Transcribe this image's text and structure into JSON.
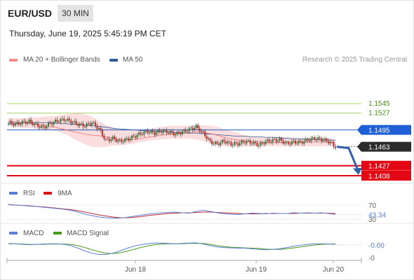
{
  "header": {
    "symbol": "EUR/USD",
    "timeframe": "30 MIN",
    "datetime": "Thursday, June 19, 2025 5:45:19 PM CET"
  },
  "legend": {
    "ma20": "MA 20 + Bollinger Bands",
    "ma50": "MA 50",
    "credit": "Research © 2025 Trading Central"
  },
  "colors": {
    "ma20": "#f06a6a",
    "ma50": "#2f5a9a",
    "bands": "#fbd7d7",
    "up": "#2e7d32",
    "down": "#c62828",
    "resistance": "#8dc63f",
    "support": "#e30613",
    "pivot": "#1f5fbf"
  },
  "chart_data": [
    {
      "type": "candlestick",
      "ylim": [
        1.4,
        1.5604
      ],
      "levels": [
        {
          "value": 1.1545,
          "label": "1.1545",
          "kind": "resistance"
        },
        {
          "value": 1.1527,
          "label": "1.1527",
          "kind": "resistance"
        },
        {
          "value": 1.1495,
          "label": "1.1495",
          "kind": "pivot"
        },
        {
          "value": 1.1463,
          "label": "1.1463",
          "kind": "last"
        },
        {
          "value": 1.1427,
          "label": "1.1427",
          "kind": "support"
        },
        {
          "value": 1.1408,
          "label": "1.1408",
          "kind": "support"
        }
      ],
      "close_path": [
        1.1508,
        1.1506,
        1.1509,
        1.1511,
        1.1504,
        1.1499,
        1.1507,
        1.1512,
        1.1515,
        1.1511,
        1.1506,
        1.1503,
        1.1509,
        1.1497,
        1.1475,
        1.1479,
        1.1473,
        1.1477,
        1.1482,
        1.1488,
        1.1492,
        1.1489,
        1.1493,
        1.1491,
        1.1487,
        1.1491,
        1.1496,
        1.1501,
        1.1489,
        1.1472,
        1.1468,
        1.1474,
        1.1468,
        1.1469,
        1.1473,
        1.1471,
        1.1466,
        1.1473,
        1.1475,
        1.1476,
        1.1469,
        1.1472,
        1.1471,
        1.1476,
        1.1479,
        1.1477,
        1.1473,
        1.1463
      ],
      "ma20": [
        1.1512,
        1.151,
        1.1509,
        1.1508,
        1.1506,
        1.1504,
        1.1502,
        1.1499,
        1.1496,
        1.1493,
        1.149,
        1.1487,
        1.1485,
        1.1484,
        1.1482,
        1.148,
        1.1477,
        1.1476,
        1.1477,
        1.1479,
        1.1481,
        1.1483,
        1.1485,
        1.1487,
        1.1488,
        1.1489,
        1.149,
        1.1491,
        1.149,
        1.1488,
        1.1485,
        1.1481,
        1.1478,
        1.1476,
        1.1474,
        1.1473,
        1.1472,
        1.1471,
        1.1471,
        1.1471,
        1.1471,
        1.1472,
        1.1472,
        1.1472,
        1.1472,
        1.1472,
        1.1472,
        1.1471
      ],
      "ma50": [
        1.1506,
        1.1507,
        1.1508,
        1.1509,
        1.1509,
        1.1509,
        1.1509,
        1.1508,
        1.1507,
        1.1506,
        1.1505,
        1.1504,
        1.1503,
        1.1502,
        1.15,
        1.1498,
        1.1497,
        1.1496,
        1.1495,
        1.1494,
        1.1493,
        1.1492,
        1.1492,
        1.1491,
        1.149,
        1.149,
        1.1489,
        1.1489,
        1.1488,
        1.1487,
        1.1486,
        1.1485,
        1.1484,
        1.1483,
        1.1483,
        1.1482,
        1.1482,
        1.1481,
        1.1481,
        1.148,
        1.1479,
        1.1478,
        1.1478,
        1.1477,
        1.1477,
        1.1476,
        1.1476,
        1.1475
      ],
      "bb_upper": [
        1.1518,
        1.1517,
        1.1517,
        1.1518,
        1.1519,
        1.152,
        1.1521,
        1.1522,
        1.1524,
        1.1526,
        1.1527,
        1.1525,
        1.152,
        1.1512,
        1.1505,
        1.15,
        1.1496,
        1.1494,
        1.1494,
        1.1495,
        1.1497,
        1.1499,
        1.1501,
        1.1502,
        1.1503,
        1.1503,
        1.1503,
        1.1504,
        1.1504,
        1.1503,
        1.1501,
        1.1497,
        1.1493,
        1.1489,
        1.1485,
        1.1482,
        1.1481,
        1.1481,
        1.1482,
        1.1482,
        1.1481,
        1.1481,
        1.148,
        1.148,
        1.148,
        1.148,
        1.148,
        1.1479
      ],
      "bb_lower": [
        1.1502,
        1.15,
        1.1499,
        1.1498,
        1.1497,
        1.1496,
        1.1495,
        1.1493,
        1.1488,
        1.1481,
        1.1474,
        1.1468,
        1.1463,
        1.1462,
        1.1463,
        1.1465,
        1.1466,
        1.1467,
        1.1469,
        1.1472,
        1.1474,
        1.1476,
        1.1477,
        1.1478,
        1.1478,
        1.1478,
        1.1478,
        1.1477,
        1.1474,
        1.147,
        1.1466,
        1.1464,
        1.1463,
        1.1463,
        1.1463,
        1.1464,
        1.1464,
        1.1464,
        1.1464,
        1.1464,
        1.1464,
        1.1464,
        1.1464,
        1.1464,
        1.1464,
        1.1464,
        1.1464,
        1.1464
      ],
      "projection": [
        1.1463,
        1.1427
      ]
    },
    {
      "type": "line",
      "title": "RSI",
      "ylim": [
        25,
        80
      ],
      "levels": [
        {
          "value": 70,
          "label": "70"
        },
        {
          "value": 30,
          "label": "30"
        }
      ],
      "last_label": "43.34",
      "series": [
        {
          "name": "RSI",
          "values": [
            72,
            70,
            69,
            67,
            66,
            64,
            62,
            60,
            58,
            55,
            50,
            44,
            40,
            36,
            34,
            33,
            33,
            35,
            38,
            41,
            44,
            46,
            48,
            49,
            50,
            48,
            47,
            52,
            55,
            52,
            48,
            45,
            44,
            43,
            45,
            47,
            46,
            45,
            47,
            46,
            46,
            48,
            47,
            48,
            47,
            48,
            46,
            43.34
          ]
        },
        {
          "name": "9MA",
          "values": [
            71,
            70,
            69,
            68,
            66,
            65,
            63,
            61,
            59,
            57,
            54,
            50,
            46,
            42,
            39,
            36,
            34,
            34,
            35,
            37,
            40,
            42,
            44,
            46,
            47,
            48,
            48,
            49,
            50,
            50,
            49,
            48,
            47,
            46,
            45,
            45,
            45,
            46,
            46,
            46,
            46,
            46,
            47,
            47,
            47,
            47,
            47,
            46
          ]
        }
      ]
    },
    {
      "type": "line",
      "title": "MACD",
      "ylim": [
        -0.0055,
        0.0035
      ],
      "ticks": [
        {
          "value": 0,
          "label": "-0.00"
        },
        {
          "value": -0.004,
          "label": "-0"
        }
      ],
      "x_labels": [
        "Jun 18",
        "Jun 19",
        "Jun 20"
      ],
      "series": [
        {
          "name": "MACD",
          "values": [
            0.0005,
            0.0004,
            0.0002,
            0.0001,
            0.0002,
            0.0003,
            0.0004,
            0.0004,
            0.0002,
            -0.0002,
            -0.001,
            -0.0019,
            -0.0026,
            -0.003,
            -0.003,
            -0.0026,
            -0.0019,
            -0.0011,
            -0.0004,
            0.0001,
            0.0004,
            0.0006,
            0.0006,
            0.0005,
            0.0004,
            0.0005,
            0.0006,
            0.0007,
            0.0003,
            -0.0002,
            -0.0006,
            -0.0008,
            -0.0009,
            -0.001,
            -0.001,
            -0.0012,
            -0.0014,
            -0.0015,
            -0.0014,
            -0.0012,
            -0.0008,
            -0.0004,
            -0.0001,
            0.0002,
            0.0004,
            0.0004,
            0.0003,
            0.0002
          ]
        },
        {
          "name": "MACD Signal",
          "values": [
            0.0004,
            0.0004,
            0.0003,
            0.0002,
            0.0002,
            0.0002,
            0.0003,
            0.0003,
            0.0003,
            0.0002,
            -0.0002,
            -0.0008,
            -0.0015,
            -0.0021,
            -0.0026,
            -0.0027,
            -0.0025,
            -0.002,
            -0.0014,
            -0.0008,
            -0.0003,
            0.0001,
            0.0003,
            0.0004,
            0.0004,
            0.0004,
            0.0005,
            0.0005,
            0.0005,
            0.0002,
            -0.0002,
            -0.0005,
            -0.0007,
            -0.0008,
            -0.0009,
            -0.001,
            -0.0011,
            -0.0013,
            -0.0014,
            -0.0014,
            -0.0012,
            -0.0009,
            -0.0006,
            -0.0003,
            -0.0,
            0.0002,
            0.0003,
            0.0003
          ]
        }
      ]
    }
  ],
  "indicators": {
    "rsi": "RSI",
    "rsi_ma": "9MA",
    "macd": "MACD",
    "macd_signal": "MACD Signal"
  }
}
